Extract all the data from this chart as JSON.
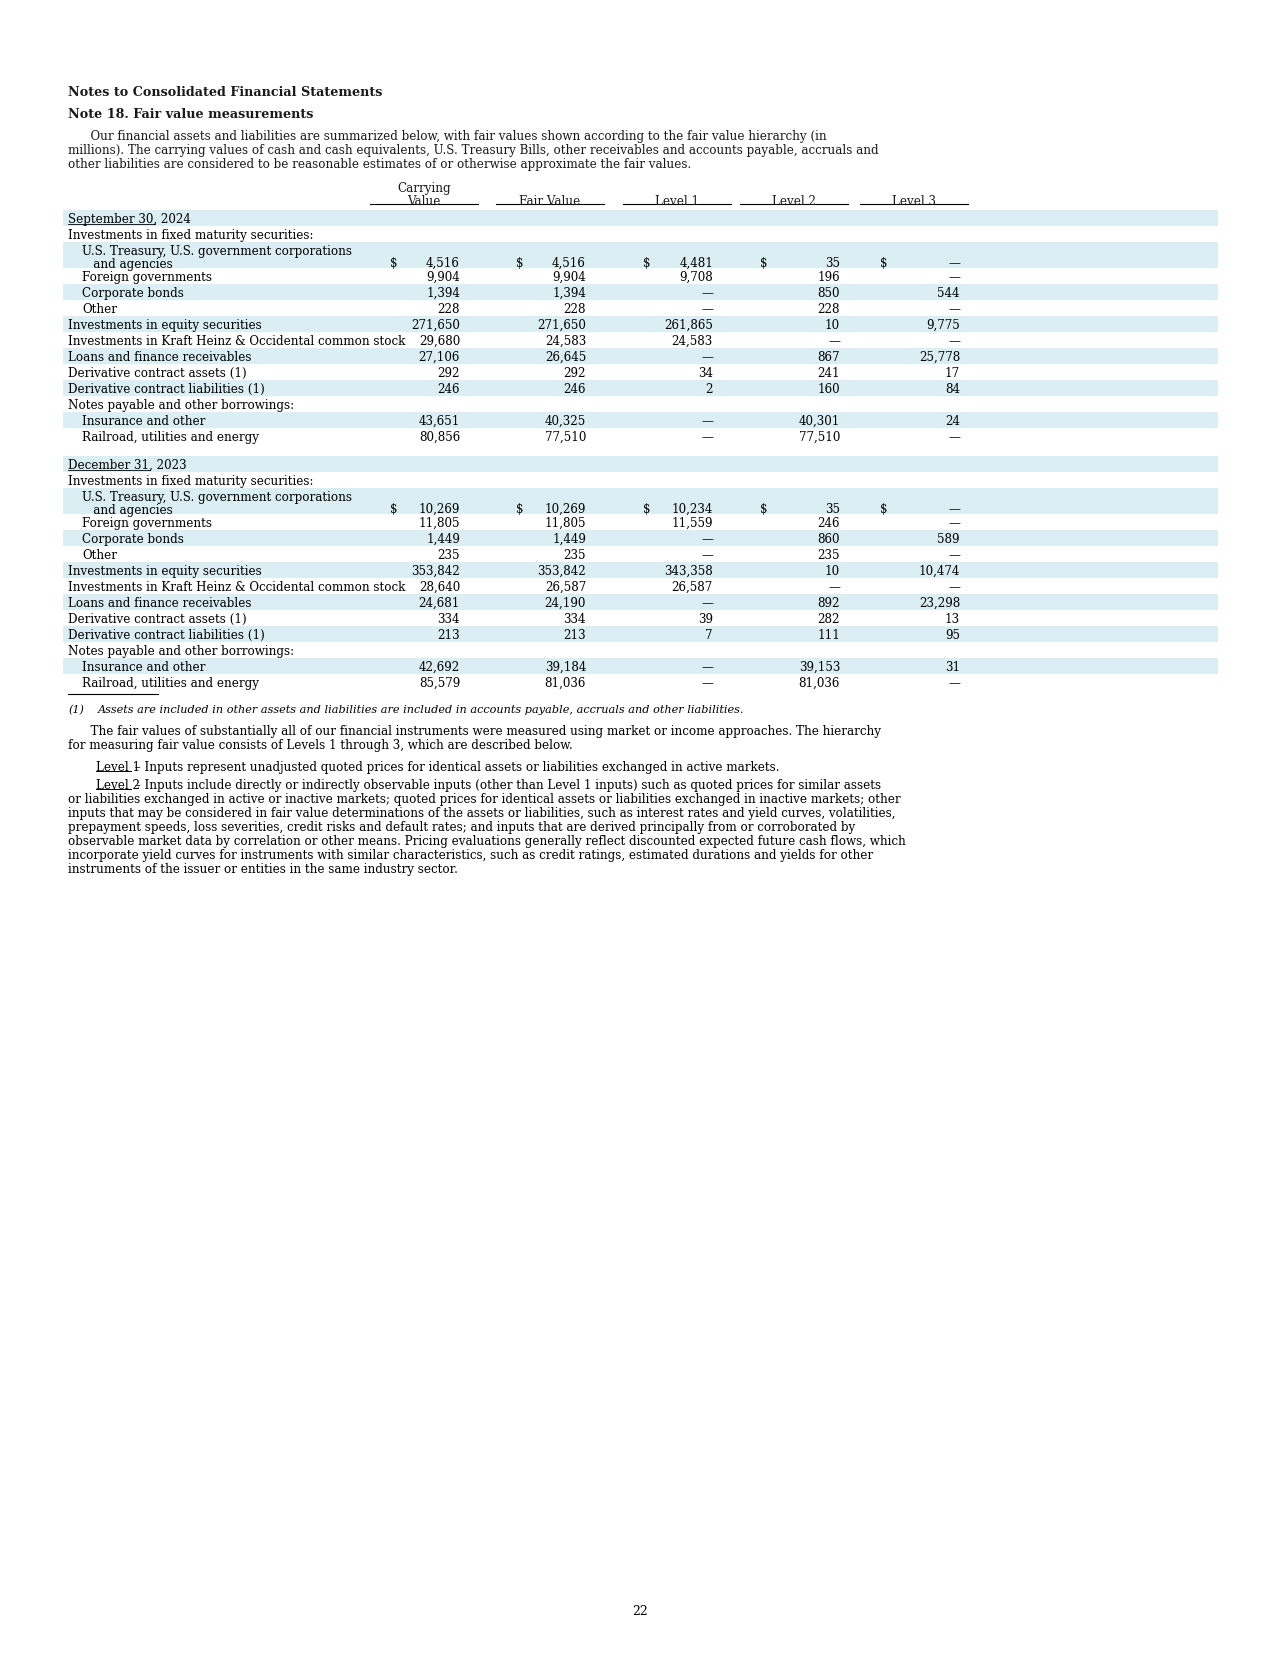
{
  "page_number": "22",
  "title1": "Notes to Consolidated Financial Statements",
  "title2": "Note 18. Fair value measurements",
  "intro_line1": "      Our financial assets and liabilities are summarized below, with fair values shown according to the fair value hierarchy (in",
  "intro_line2": "millions). The carrying values of cash and cash equivalents, U.S. Treasury Bills, other receivables and accounts payable, accruals and",
  "intro_line3": "other liabilities are considered to be reasonable estimates of or otherwise approximate the fair values.",
  "section1_header": "September 30, 2024",
  "section1_rows": [
    {
      "label": "Investments in fixed maturity securities:",
      "indent": 0,
      "values": [
        "",
        "",
        "",
        "",
        ""
      ],
      "shaded": false,
      "cat_header": true
    },
    {
      "label": "U.S. Treasury, U.S. government corporations",
      "label2": "   and agencies",
      "indent": 1,
      "dollar": true,
      "values": [
        "4,516",
        "4,516",
        "4,481",
        "35",
        "—"
      ],
      "shaded": true
    },
    {
      "label": "Foreign governments",
      "label2": null,
      "indent": 1,
      "dollar": false,
      "values": [
        "9,904",
        "9,904",
        "9,708",
        "196",
        "—"
      ],
      "shaded": false
    },
    {
      "label": "Corporate bonds",
      "label2": null,
      "indent": 1,
      "dollar": false,
      "values": [
        "1,394",
        "1,394",
        "—",
        "850",
        "544"
      ],
      "shaded": true
    },
    {
      "label": "Other",
      "label2": null,
      "indent": 1,
      "dollar": false,
      "values": [
        "228",
        "228",
        "—",
        "228",
        "—"
      ],
      "shaded": false
    },
    {
      "label": "Investments in equity securities",
      "label2": null,
      "indent": 0,
      "dollar": false,
      "values": [
        "271,650",
        "271,650",
        "261,865",
        "10",
        "9,775"
      ],
      "shaded": true
    },
    {
      "label": "Investments in Kraft Heinz & Occidental common stock",
      "label2": null,
      "indent": 0,
      "dollar": false,
      "values": [
        "29,680",
        "24,583",
        "24,583",
        "—",
        "—"
      ],
      "shaded": false
    },
    {
      "label": "Loans and finance receivables",
      "label2": null,
      "indent": 0,
      "dollar": false,
      "values": [
        "27,106",
        "26,645",
        "—",
        "867",
        "25,778"
      ],
      "shaded": true
    },
    {
      "label": "Derivative contract assets (1)",
      "label2": null,
      "indent": 0,
      "dollar": false,
      "values": [
        "292",
        "292",
        "34",
        "241",
        "17"
      ],
      "shaded": false,
      "superscript": true
    },
    {
      "label": "Derivative contract liabilities (1)",
      "label2": null,
      "indent": 0,
      "dollar": false,
      "values": [
        "246",
        "246",
        "2",
        "160",
        "84"
      ],
      "shaded": true,
      "superscript": true
    },
    {
      "label": "Notes payable and other borrowings:",
      "indent": 0,
      "values": [
        "",
        "",
        "",
        "",
        ""
      ],
      "shaded": false,
      "cat_header": true
    },
    {
      "label": "Insurance and other",
      "label2": null,
      "indent": 1,
      "dollar": false,
      "values": [
        "43,651",
        "40,325",
        "—",
        "40,301",
        "24"
      ],
      "shaded": true
    },
    {
      "label": "Railroad, utilities and energy",
      "label2": null,
      "indent": 1,
      "dollar": false,
      "values": [
        "80,856",
        "77,510",
        "—",
        "77,510",
        "—"
      ],
      "shaded": false
    }
  ],
  "section2_header": "December 31, 2023",
  "section2_rows": [
    {
      "label": "Investments in fixed maturity securities:",
      "indent": 0,
      "values": [
        "",
        "",
        "",
        "",
        ""
      ],
      "shaded": false,
      "cat_header": true
    },
    {
      "label": "U.S. Treasury, U.S. government corporations",
      "label2": "   and agencies",
      "indent": 1,
      "dollar": true,
      "values": [
        "10,269",
        "10,269",
        "10,234",
        "35",
        "—"
      ],
      "shaded": true
    },
    {
      "label": "Foreign governments",
      "label2": null,
      "indent": 1,
      "dollar": false,
      "values": [
        "11,805",
        "11,805",
        "11,559",
        "246",
        "—"
      ],
      "shaded": false
    },
    {
      "label": "Corporate bonds",
      "label2": null,
      "indent": 1,
      "dollar": false,
      "values": [
        "1,449",
        "1,449",
        "—",
        "860",
        "589"
      ],
      "shaded": true
    },
    {
      "label": "Other",
      "label2": null,
      "indent": 1,
      "dollar": false,
      "values": [
        "235",
        "235",
        "—",
        "235",
        "—"
      ],
      "shaded": false
    },
    {
      "label": "Investments in equity securities",
      "label2": null,
      "indent": 0,
      "dollar": false,
      "values": [
        "353,842",
        "353,842",
        "343,358",
        "10",
        "10,474"
      ],
      "shaded": true
    },
    {
      "label": "Investments in Kraft Heinz & Occidental common stock",
      "label2": null,
      "indent": 0,
      "dollar": false,
      "values": [
        "28,640",
        "26,587",
        "26,587",
        "—",
        "—"
      ],
      "shaded": false
    },
    {
      "label": "Loans and finance receivables",
      "label2": null,
      "indent": 0,
      "dollar": false,
      "values": [
        "24,681",
        "24,190",
        "—",
        "892",
        "23,298"
      ],
      "shaded": true
    },
    {
      "label": "Derivative contract assets (1)",
      "label2": null,
      "indent": 0,
      "dollar": false,
      "values": [
        "334",
        "334",
        "39",
        "282",
        "13"
      ],
      "shaded": false,
      "superscript": true
    },
    {
      "label": "Derivative contract liabilities (1)",
      "label2": null,
      "indent": 0,
      "dollar": false,
      "values": [
        "213",
        "213",
        "7",
        "111",
        "95"
      ],
      "shaded": true,
      "superscript": true
    },
    {
      "label": "Notes payable and other borrowings:",
      "indent": 0,
      "values": [
        "",
        "",
        "",
        "",
        ""
      ],
      "shaded": false,
      "cat_header": true
    },
    {
      "label": "Insurance and other",
      "label2": null,
      "indent": 1,
      "dollar": false,
      "values": [
        "42,692",
        "39,184",
        "—",
        "39,153",
        "31"
      ],
      "shaded": true
    },
    {
      "label": "Railroad, utilities and energy",
      "label2": null,
      "indent": 1,
      "dollar": false,
      "values": [
        "85,579",
        "81,036",
        "—",
        "81,036",
        "—"
      ],
      "shaded": false
    }
  ],
  "footnote_num": "(1)",
  "footnote_text": "Assets are included in other assets and liabilities are included in accounts payable, accruals and other liabilities.",
  "para1_line1": "      The fair values of substantially all of our financial instruments were measured using market or income approaches. The hierarchy",
  "para1_line2": "for measuring fair value consists of Levels 1 through 3, which are described below.",
  "para2_label": "Level 1",
  "para2_text": " – Inputs represent unadjusted quoted prices for identical assets or liabilities exchanged in active markets.",
  "para3_label": "Level 2",
  "para3_lines": [
    " – Inputs include directly or indirectly observable inputs (other than Level 1 inputs) such as quoted prices for similar assets",
    "or liabilities exchanged in active or inactive markets; quoted prices for identical assets or liabilities exchanged in inactive markets; other",
    "inputs that may be considered in fair value determinations of the assets or liabilities, such as interest rates and yield curves, volatilities,",
    "prepayment speeds, loss severities, credit risks and default rates; and inputs that are derived principally from or corroborated by",
    "observable market data by correlation or other means. Pricing evaluations generally reflect discounted expected future cash flows, which",
    "incorporate yield curves for instruments with similar characteristics, such as credit ratings, estimated durations and yields for other",
    "instruments of the issuer or entities in the same industry sector."
  ],
  "bg_color": "#ffffff",
  "shade_color": "#daeef3",
  "text_color": "#1a1a1a"
}
